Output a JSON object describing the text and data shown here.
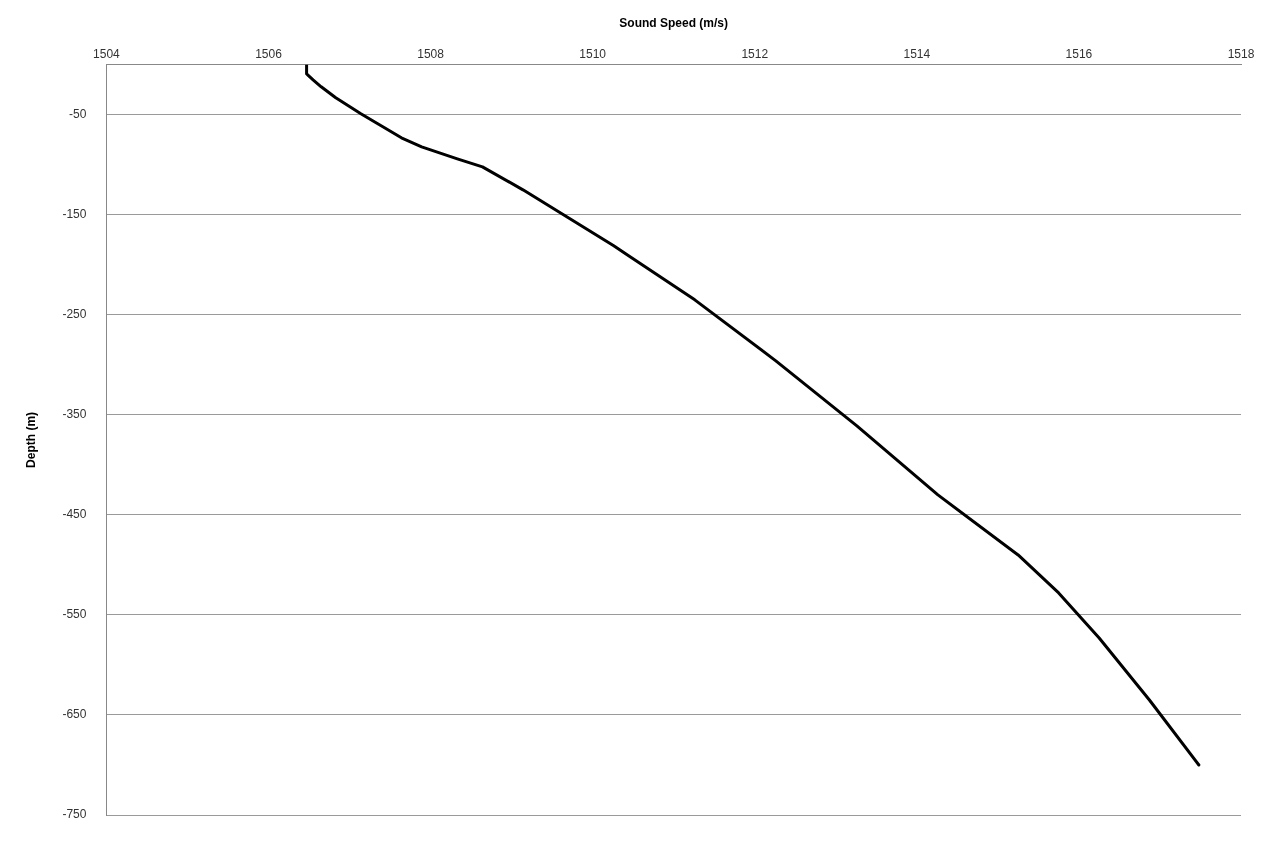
{
  "chart_data": {
    "type": "line",
    "xlabel": "Sound Speed (m/s)",
    "ylabel": "Depth (m)",
    "xlim": [
      1504,
      1518
    ],
    "xticks": [
      1504,
      1506,
      1508,
      1510,
      1512,
      1514,
      1516,
      1518
    ],
    "ylim": [
      -750,
      0
    ],
    "yticks": [
      -50,
      -150,
      -250,
      -350,
      -450,
      -550,
      -650,
      -750
    ],
    "grid": "y",
    "marker": "none",
    "line_style": "solid",
    "series": [
      {
        "color": "#000000",
        "x": [
          1506.47,
          1506.47,
          1506.55,
          1506.65,
          1506.83,
          1507.14,
          1507.39,
          1507.64,
          1507.89,
          1508.33,
          1508.64,
          1509.14,
          1509.64,
          1510.26,
          1511.26,
          1512.26,
          1513.26,
          1514.26,
          1515.25,
          1515.75,
          1516.25,
          1516.87,
          1517.48
        ],
        "values": [
          0,
          -9,
          -15,
          -22,
          -33,
          -49,
          -61,
          -73,
          -82,
          -94,
          -102,
          -125,
          -150,
          -181,
          -235,
          -296,
          -361,
          -430,
          -490,
          -528,
          -573,
          -635,
          -700
        ]
      }
    ]
  }
}
